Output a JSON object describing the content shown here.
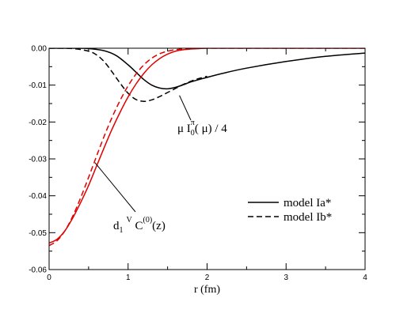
{
  "chart_data": {
    "type": "line",
    "xlabel": "r (fm)",
    "ylabel": "",
    "xlim": [
      0,
      4
    ],
    "ylim": [
      -0.06,
      0
    ],
    "xticks": [
      "0",
      "1",
      "2",
      "3",
      "4"
    ],
    "yticks": [
      "0.00",
      "-0.01",
      "-0.02",
      "-0.03",
      "-0.04",
      "-0.05",
      "-0.06"
    ],
    "grid": false,
    "legend_position": "right",
    "legend": [
      {
        "label": "model Ia*",
        "style": "solid"
      },
      {
        "label": "model Ib*",
        "style": "dashed"
      }
    ],
    "annotations": {
      "pion": {
        "main": "μ I",
        "sub": "0",
        "sup": "π",
        "rest": "( μ) / 4",
        "points_to": {
          "x": 1.65,
          "y": -0.0128
        }
      },
      "vector": {
        "main": "d",
        "sub": "1",
        "sup": "V",
        "rest_main": " C",
        "rest_sup": "(0)",
        "rest": "(z)",
        "points_to": {
          "x": 0.58,
          "y": -0.031
        }
      }
    },
    "series": [
      {
        "name": "model Ia*",
        "color": "#000000",
        "dash": "solid",
        "x": [
          0.0,
          0.3,
          0.5,
          0.7,
          0.85,
          1.0,
          1.1,
          1.2,
          1.3,
          1.4,
          1.5,
          1.6,
          1.7,
          1.8,
          2.0,
          2.2,
          2.5,
          3.0,
          3.5,
          4.0
        ],
        "y": [
          0.0,
          0.0,
          -0.0001,
          -0.0007,
          -0.002,
          -0.0045,
          -0.0065,
          -0.0085,
          -0.01,
          -0.0108,
          -0.011,
          -0.0106,
          -0.0099,
          -0.0091,
          -0.0079,
          -0.0068,
          -0.0054,
          -0.0036,
          -0.0022,
          -0.0013
        ]
      },
      {
        "name": "model Ib*",
        "color": "#000000",
        "dash": "dashed",
        "x": [
          0.0,
          0.3,
          0.5,
          0.6,
          0.7,
          0.8,
          0.9,
          1.0,
          1.1,
          1.2,
          1.3,
          1.4,
          1.5,
          1.6,
          1.7,
          1.8,
          1.9,
          2.0
        ],
        "y": [
          0.0,
          -0.0001,
          -0.0008,
          -0.0018,
          -0.0037,
          -0.0065,
          -0.0095,
          -0.0122,
          -0.0139,
          -0.0144,
          -0.014,
          -0.0131,
          -0.012,
          -0.0109,
          -0.0098,
          -0.0089,
          -0.0082,
          -0.0076
        ]
      },
      {
        "name": "model Ia*",
        "color": "#e00000",
        "dash": "solid",
        "x": [
          0.0,
          0.1,
          0.2,
          0.3,
          0.4,
          0.5,
          0.6,
          0.7,
          0.8,
          0.9,
          1.0,
          1.1,
          1.2,
          1.3,
          1.4,
          1.5,
          1.6,
          1.7,
          1.8,
          1.9,
          2.0,
          2.2,
          2.5,
          4.0
        ],
        "y": [
          -0.0528,
          -0.0518,
          -0.0495,
          -0.046,
          -0.0418,
          -0.0372,
          -0.032,
          -0.0268,
          -0.0218,
          -0.0173,
          -0.0132,
          -0.0097,
          -0.0068,
          -0.0045,
          -0.0028,
          -0.0016,
          -0.0008,
          -0.0004,
          -0.0002,
          -0.0001,
          0.0,
          0.0,
          0.0,
          0.0
        ]
      },
      {
        "name": "model Ib*",
        "color": "#e00000",
        "dash": "dashed",
        "x": [
          0.0,
          0.1,
          0.2,
          0.3,
          0.4,
          0.5,
          0.6,
          0.7,
          0.8,
          0.9,
          1.0,
          1.1,
          1.2,
          1.3,
          1.4,
          1.5,
          1.6,
          1.7,
          1.8,
          2.0,
          2.5,
          4.0
        ],
        "y": [
          -0.0535,
          -0.0522,
          -0.0495,
          -0.0455,
          -0.0405,
          -0.035,
          -0.0293,
          -0.0237,
          -0.0186,
          -0.0141,
          -0.0102,
          -0.007,
          -0.0045,
          -0.0027,
          -0.0015,
          -0.0008,
          -0.0004,
          -0.0002,
          -0.0001,
          0.0,
          0.0,
          0.0
        ]
      }
    ]
  }
}
